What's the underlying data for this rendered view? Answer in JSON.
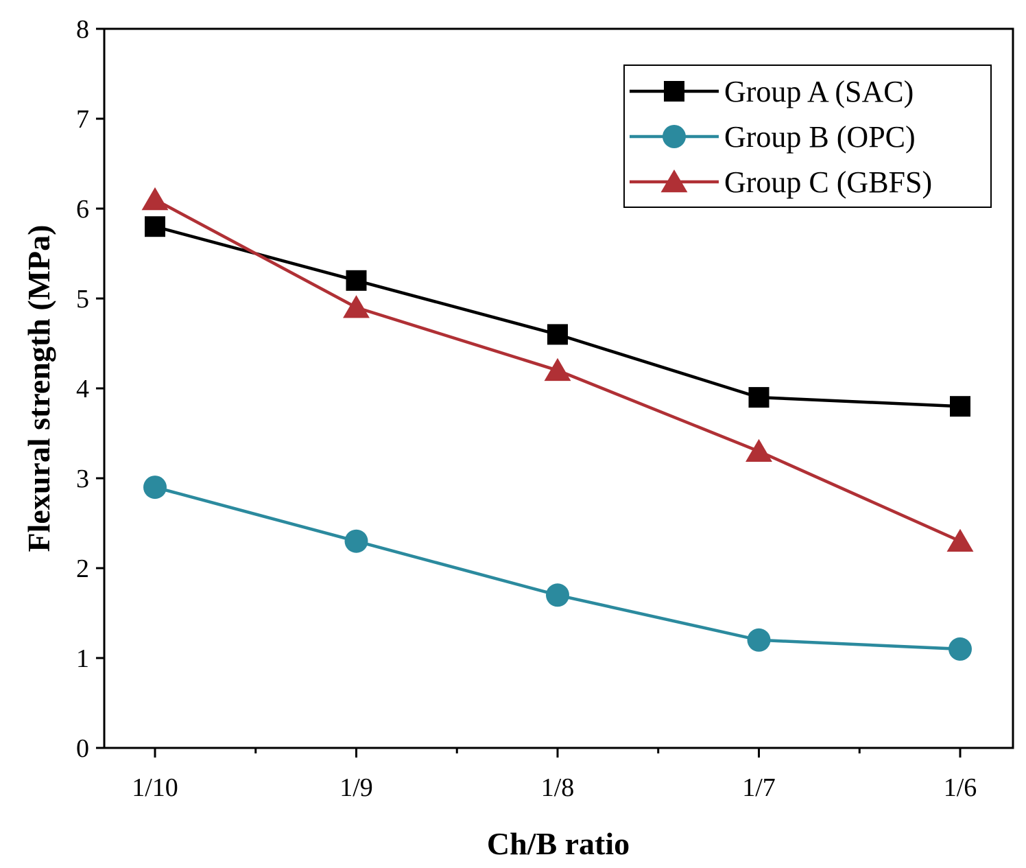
{
  "chart_data": {
    "type": "line",
    "title": "",
    "xlabel": "Ch/B ratio",
    "ylabel": "Flexural strength (MPa)",
    "categories": [
      "1/10",
      "1/9",
      "1/8",
      "1/7",
      "1/6"
    ],
    "ylim": [
      0,
      8
    ],
    "yticks": [
      "0",
      "1",
      "2",
      "3",
      "4",
      "5",
      "6",
      "7",
      "8"
    ],
    "grid": false,
    "legend_position": "top-right",
    "series": [
      {
        "name": "Group A (SAC)",
        "marker": "square",
        "color": "#000000",
        "values": [
          5.8,
          5.2,
          4.6,
          3.9,
          3.8
        ]
      },
      {
        "name": "Group B (OPC)",
        "marker": "circle",
        "color": "#2b8a9e",
        "values": [
          2.9,
          2.3,
          1.7,
          1.2,
          1.1
        ]
      },
      {
        "name": "Group C (GBFS)",
        "marker": "triangle",
        "color": "#b03035",
        "values": [
          6.1,
          4.9,
          4.2,
          3.3,
          2.3
        ]
      }
    ]
  }
}
